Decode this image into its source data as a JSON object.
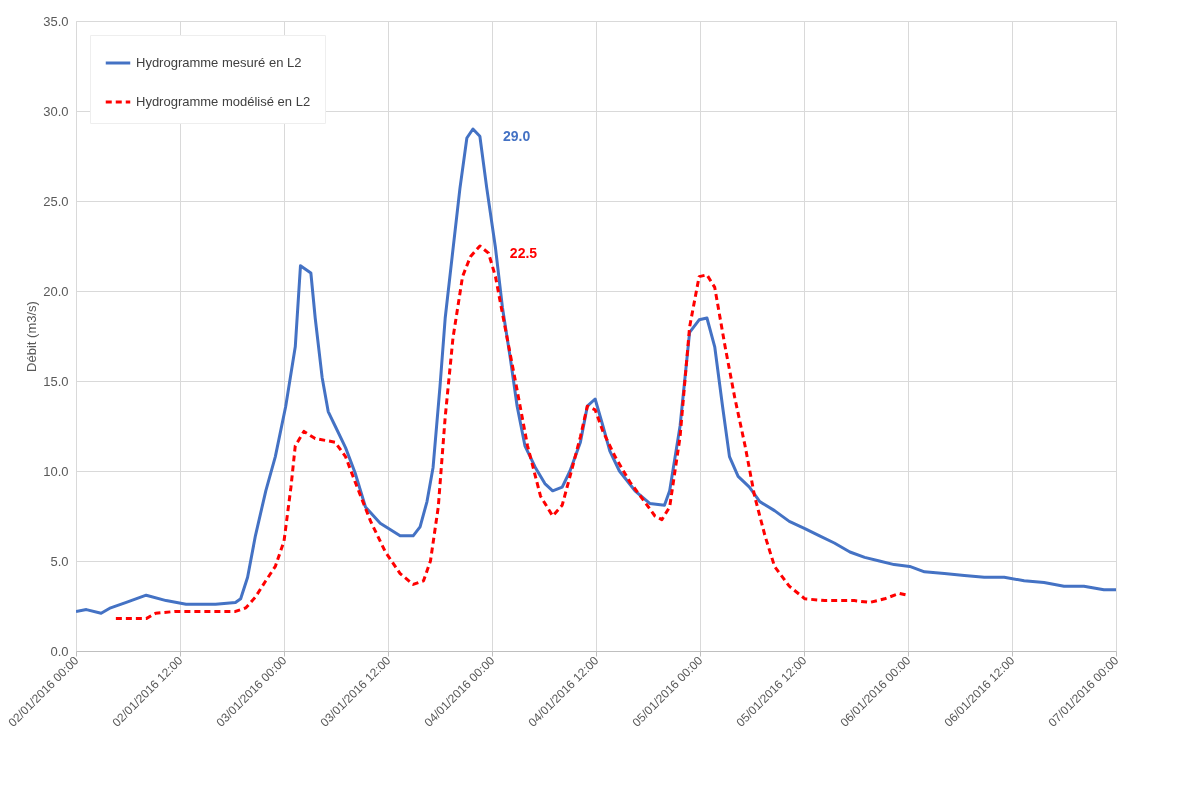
{
  "chart_data": {
    "type": "line",
    "ylabel": "Débit (m3/s)",
    "xlim": [
      "2016-01-02T00:00",
      "2016-01-07T00:00"
    ],
    "ylim": [
      0,
      35
    ],
    "xticks": [
      {
        "value": "2016-01-02T00:00",
        "label": "02/01/2016 00:00"
      },
      {
        "value": "2016-01-02T12:00",
        "label": "02/01/2016 12:00"
      },
      {
        "value": "2016-01-03T00:00",
        "label": "03/01/2016 00:00"
      },
      {
        "value": "2016-01-03T12:00",
        "label": "03/01/2016 12:00"
      },
      {
        "value": "2016-01-04T00:00",
        "label": "04/01/2016 00:00"
      },
      {
        "value": "2016-01-04T12:00",
        "label": "04/01/2016 12:00"
      },
      {
        "value": "2016-01-05T00:00",
        "label": "05/01/2016 00:00"
      },
      {
        "value": "2016-01-05T12:00",
        "label": "05/01/2016 12:00"
      },
      {
        "value": "2016-01-06T00:00",
        "label": "06/01/2016 00:00"
      },
      {
        "value": "2016-01-06T12:00",
        "label": "06/01/2016 12:00"
      },
      {
        "value": "2016-01-07T00:00",
        "label": "07/01/2016 00:00"
      }
    ],
    "yticks": [
      {
        "value": 0,
        "label": "0.0"
      },
      {
        "value": 5,
        "label": "5.0"
      },
      {
        "value": 10,
        "label": "10.0"
      },
      {
        "value": 15,
        "label": "15.0"
      },
      {
        "value": 20,
        "label": "20.0"
      },
      {
        "value": 25,
        "label": "25.0"
      },
      {
        "value": 30,
        "label": "30.0"
      },
      {
        "value": 35,
        "label": "35.0"
      }
    ],
    "grid": true,
    "legend": "top left",
    "series": [
      {
        "name": "Hydrogramme mesuré en  L2",
        "color": "#4472c4",
        "line_style": "solid",
        "x": [
          "2016-01-02T00:00",
          "2016-01-02T01:12",
          "2016-01-02T02:54",
          "2016-01-02T04:00",
          "2016-01-02T05:48",
          "2016-01-02T08:06",
          "2016-01-02T10:24",
          "2016-01-02T12:42",
          "2016-01-02T16:06",
          "2016-01-02T18:24",
          "2016-01-02T19:00",
          "2016-01-02T19:48",
          "2016-01-02T20:42",
          "2016-01-02T21:54",
          "2016-01-02T23:00",
          "2016-01-03T00:12",
          "2016-01-03T01:18",
          "2016-01-03T01:54",
          "2016-01-03T03:06",
          "2016-01-03T03:36",
          "2016-01-03T04:24",
          "2016-01-03T05:06",
          "2016-01-03T05:54",
          "2016-01-03T07:06",
          "2016-01-03T08:12",
          "2016-01-03T09:24",
          "2016-01-03T11:06",
          "2016-01-03T13:24",
          "2016-01-03T14:54",
          "2016-01-03T15:42",
          "2016-01-03T16:30",
          "2016-01-03T17:12",
          "2016-01-03T18:00",
          "2016-01-03T18:36",
          "2016-01-03T19:24",
          "2016-01-03T20:18",
          "2016-01-03T21:06",
          "2016-01-03T21:48",
          "2016-01-03T22:36",
          "2016-01-03T23:24",
          "2016-01-04T00:24",
          "2016-01-04T01:12",
          "2016-01-04T02:06",
          "2016-01-04T02:54",
          "2016-01-04T03:48",
          "2016-01-04T05:00",
          "2016-01-04T06:06",
          "2016-01-04T07:00",
          "2016-01-04T08:06",
          "2016-01-04T09:00",
          "2016-01-04T10:12",
          "2016-01-04T11:00",
          "2016-01-04T11:54",
          "2016-01-04T12:48",
          "2016-01-04T13:36",
          "2016-01-04T14:42",
          "2016-01-04T16:30",
          "2016-01-04T18:12",
          "2016-01-04T19:54",
          "2016-01-04T20:30",
          "2016-01-04T21:42",
          "2016-01-04T22:48",
          "2016-01-04T23:54",
          "2016-01-05T00:48",
          "2016-01-05T01:42",
          "2016-01-05T02:36",
          "2016-01-05T03:24",
          "2016-01-05T04:24",
          "2016-01-05T05:42",
          "2016-01-05T06:54",
          "2016-01-05T08:36",
          "2016-01-05T10:18",
          "2016-01-05T12:06",
          "2016-01-05T13:48",
          "2016-01-05T15:30",
          "2016-01-05T17:18",
          "2016-01-05T19:00",
          "2016-01-05T20:42",
          "2016-01-05T22:24",
          "2016-01-06T00:12",
          "2016-01-06T01:54",
          "2016-01-06T04:12",
          "2016-01-06T06:30",
          "2016-01-06T08:48",
          "2016-01-06T11:06",
          "2016-01-06T13:24",
          "2016-01-06T15:42",
          "2016-01-06T18:00",
          "2016-01-06T20:18",
          "2016-01-06T22:36",
          "2016-01-07T00:00"
        ],
        "values": [
          2.2,
          2.3,
          2.1,
          2.4,
          2.7,
          3.1,
          2.8,
          2.6,
          2.6,
          2.7,
          2.9,
          4.1,
          6.4,
          8.9,
          10.8,
          13.6,
          16.9,
          21.4,
          21.0,
          18.5,
          15.2,
          13.3,
          12.5,
          11.3,
          9.9,
          8.0,
          7.1,
          6.4,
          6.4,
          6.9,
          8.3,
          10.2,
          14.7,
          18.5,
          21.9,
          25.7,
          28.5,
          29.0,
          28.6,
          25.7,
          22.4,
          19.1,
          16.3,
          13.6,
          11.4,
          10.2,
          9.3,
          8.9,
          9.1,
          10.0,
          11.6,
          13.6,
          14.0,
          12.5,
          11.1,
          10.0,
          8.9,
          8.2,
          8.1,
          8.9,
          12.5,
          17.7,
          18.4,
          18.5,
          16.9,
          13.6,
          10.8,
          9.7,
          9.1,
          8.3,
          7.8,
          7.2,
          6.8,
          6.4,
          6.0,
          5.5,
          5.2,
          5.0,
          4.8,
          4.7,
          4.4,
          4.3,
          4.2,
          4.1,
          4.1,
          3.9,
          3.8,
          3.6,
          3.6,
          3.4,
          3.4
        ]
      },
      {
        "name": "Hydrogramme modélisé en L2",
        "color": "#ff0000",
        "line_style": "dashed",
        "x": [
          "2016-01-02T04:36",
          "2016-01-02T08:06",
          "2016-01-02T09:12",
          "2016-01-02T11:30",
          "2016-01-02T18:24",
          "2016-01-02T19:36",
          "2016-01-02T20:42",
          "2016-01-02T21:54",
          "2016-01-02T23:00",
          "2016-01-03T00:00",
          "2016-01-03T00:48",
          "2016-01-03T01:18",
          "2016-01-03T02:18",
          "2016-01-03T03:36",
          "2016-01-03T05:54",
          "2016-01-03T07:06",
          "2016-01-03T08:12",
          "2016-01-03T10:00",
          "2016-01-03T11:42",
          "2016-01-03T13:24",
          "2016-01-03T14:54",
          "2016-01-03T16:06",
          "2016-01-03T16:54",
          "2016-01-03T17:48",
          "2016-01-03T18:36",
          "2016-01-03T19:30",
          "2016-01-03T20:36",
          "2016-01-03T21:30",
          "2016-01-03T22:36",
          "2016-01-03T23:36",
          "2016-01-04T00:24",
          "2016-01-04T01:30",
          "2016-01-04T02:42",
          "2016-01-04T04:06",
          "2016-01-04T05:36",
          "2016-01-04T07:00",
          "2016-01-04T08:06",
          "2016-01-04T09:00",
          "2016-01-04T10:12",
          "2016-01-04T11:00",
          "2016-01-04T11:54",
          "2016-01-04T12:48",
          "2016-01-04T14:12",
          "2016-01-04T15:54",
          "2016-01-04T17:36",
          "2016-01-04T18:48",
          "2016-01-04T19:36",
          "2016-01-04T20:30",
          "2016-01-04T21:42",
          "2016-01-04T22:48",
          "2016-01-04T23:54",
          "2016-01-05T00:48",
          "2016-01-05T01:42",
          "2016-01-05T02:54",
          "2016-01-05T04:00",
          "2016-01-05T05:12",
          "2016-01-05T06:18",
          "2016-01-05T07:30",
          "2016-01-05T08:36",
          "2016-01-05T10:18",
          "2016-01-05T12:06",
          "2016-01-05T14:24",
          "2016-01-05T17:48",
          "2016-01-05T19:36",
          "2016-01-05T21:18",
          "2016-01-05T23:00",
          "2016-01-05T23:54"
        ],
        "values": [
          1.8,
          1.8,
          2.1,
          2.2,
          2.2,
          2.4,
          3.0,
          3.9,
          4.7,
          6.1,
          9.1,
          11.4,
          12.2,
          11.8,
          11.6,
          10.8,
          9.4,
          7.2,
          5.5,
          4.3,
          3.7,
          3.9,
          5.0,
          8.0,
          13.0,
          17.4,
          20.8,
          21.9,
          22.5,
          22.1,
          20.8,
          18.0,
          15.0,
          11.4,
          8.6,
          7.5,
          8.1,
          9.7,
          11.9,
          13.6,
          13.4,
          12.2,
          10.8,
          9.4,
          8.3,
          7.5,
          7.3,
          8.0,
          11.9,
          18.0,
          20.8,
          20.9,
          20.2,
          16.9,
          14.1,
          11.4,
          8.6,
          6.4,
          4.7,
          3.6,
          2.9,
          2.8,
          2.8,
          2.7,
          2.9,
          3.2,
          3.1
        ]
      }
    ],
    "annotations": [
      {
        "text": "29.0",
        "x": "2016-01-03T21:48",
        "y": 29.0
      },
      {
        "text": "22.5",
        "x": "2016-01-03T22:36",
        "y": 22.5
      }
    ]
  }
}
